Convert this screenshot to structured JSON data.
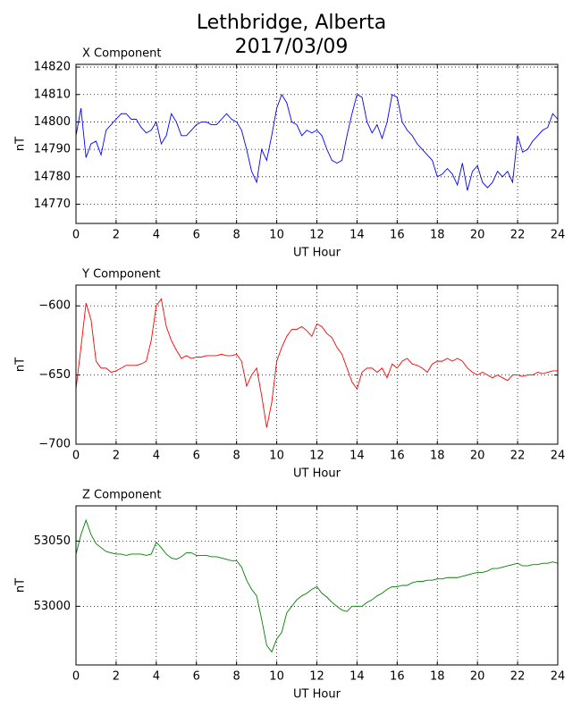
{
  "title": [
    "Lethbridge, Alberta",
    "2017/03/09"
  ],
  "chart_data": [
    {
      "type": "line",
      "title": "X Component",
      "xlabel": "UT Hour",
      "ylabel": "nT",
      "xlim": [
        0,
        24
      ],
      "xticks": [
        0,
        2,
        4,
        6,
        8,
        10,
        12,
        14,
        16,
        18,
        20,
        22,
        24
      ],
      "ylim": [
        14763,
        14821
      ],
      "yticks": [
        14770,
        14780,
        14790,
        14800,
        14810,
        14820
      ],
      "grid": true,
      "x": [
        0,
        0.25,
        0.5,
        0.75,
        1,
        1.25,
        1.5,
        1.75,
        2,
        2.25,
        2.5,
        2.75,
        3,
        3.25,
        3.5,
        3.75,
        4,
        4.25,
        4.5,
        4.75,
        5,
        5.25,
        5.5,
        5.75,
        6,
        6.25,
        6.5,
        6.75,
        7,
        7.25,
        7.5,
        7.75,
        8,
        8.25,
        8.5,
        8.75,
        9,
        9.25,
        9.5,
        9.75,
        10,
        10.25,
        10.5,
        10.75,
        11,
        11.25,
        11.5,
        11.75,
        12,
        12.25,
        12.5,
        12.75,
        13,
        13.25,
        13.5,
        13.75,
        14,
        14.25,
        14.5,
        14.75,
        15,
        15.25,
        15.5,
        15.75,
        16,
        16.25,
        16.5,
        16.75,
        17,
        17.25,
        17.5,
        17.75,
        18,
        18.25,
        18.5,
        18.75,
        19,
        19.25,
        19.5,
        19.75,
        20,
        20.25,
        20.5,
        20.75,
        21,
        21.25,
        21.5,
        21.75,
        22,
        22.25,
        22.5,
        22.75,
        23,
        23.25,
        23.5,
        23.75,
        24
      ],
      "series": [
        {
          "color": "#0000ff",
          "values": [
            14795,
            14805,
            14787,
            14792,
            14793,
            14788,
            14797,
            14799,
            14801,
            14803,
            14803,
            14801,
            14801,
            14798,
            14796,
            14797,
            14800,
            14792,
            14795,
            14803,
            14800,
            14795,
            14795,
            14797,
            14799,
            14800,
            14800,
            14799,
            14799,
            14801,
            14803,
            14801,
            14800,
            14797,
            14790,
            14782,
            14778,
            14790,
            14786,
            14795,
            14805,
            14810,
            14807,
            14800,
            14799,
            14795,
            14797,
            14796,
            14797,
            14795,
            14790,
            14786,
            14785,
            14786,
            14795,
            14803,
            14810,
            14809,
            14800,
            14796,
            14799,
            14794,
            14800,
            14810,
            14809,
            14800,
            14797,
            14795,
            14792,
            14790,
            14788,
            14786,
            14780,
            14781,
            14783,
            14781,
            14777,
            14785,
            14775,
            14782,
            14784,
            14778,
            14776,
            14778,
            14782,
            14780,
            14782,
            14778,
            14795,
            14789,
            14790,
            14793,
            14795,
            14797,
            14798,
            14803,
            14801
          ]
        }
      ]
    },
    {
      "type": "line",
      "title": "Y Component",
      "xlabel": "UT Hour",
      "ylabel": "nT",
      "xlim": [
        0,
        24
      ],
      "xticks": [
        0,
        2,
        4,
        6,
        8,
        10,
        12,
        14,
        16,
        18,
        20,
        22,
        24
      ],
      "ylim": [
        -700,
        -585
      ],
      "yticks": [
        {
          "value": -600,
          "label": "−600"
        },
        {
          "value": -650,
          "label": "−650"
        },
        {
          "value": -700,
          "label": "−700"
        }
      ],
      "grid": true,
      "x": [
        0,
        0.25,
        0.5,
        0.75,
        1,
        1.25,
        1.5,
        1.75,
        2,
        2.25,
        2.5,
        2.75,
        3,
        3.25,
        3.5,
        3.75,
        4,
        4.25,
        4.5,
        4.75,
        5,
        5.25,
        5.5,
        5.75,
        6,
        6.25,
        6.5,
        6.75,
        7,
        7.25,
        7.5,
        7.75,
        8,
        8.25,
        8.5,
        8.75,
        9,
        9.25,
        9.5,
        9.75,
        10,
        10.25,
        10.5,
        10.75,
        11,
        11.25,
        11.5,
        11.75,
        12,
        12.25,
        12.5,
        12.75,
        13,
        13.25,
        13.5,
        13.75,
        14,
        14.25,
        14.5,
        14.75,
        15,
        15.25,
        15.5,
        15.75,
        16,
        16.25,
        16.5,
        16.75,
        17,
        17.25,
        17.5,
        17.75,
        18,
        18.25,
        18.5,
        18.75,
        19,
        19.25,
        19.5,
        19.75,
        20,
        20.25,
        20.5,
        20.75,
        21,
        21.25,
        21.5,
        21.75,
        22,
        22.25,
        22.5,
        22.75,
        23,
        23.25,
        23.5,
        23.75,
        24
      ],
      "series": [
        {
          "color": "#ff0000",
          "values": [
            -660,
            -630,
            -598,
            -610,
            -640,
            -645,
            -645,
            -648,
            -647,
            -645,
            -643,
            -643,
            -643,
            -642,
            -640,
            -625,
            -600,
            -595,
            -615,
            -625,
            -632,
            -638,
            -636,
            -638,
            -637,
            -637,
            -636,
            -636,
            -636,
            -635,
            -636,
            -636,
            -635,
            -640,
            -658,
            -650,
            -645,
            -665,
            -688,
            -670,
            -640,
            -630,
            -622,
            -617,
            -617,
            -615,
            -618,
            -622,
            -613,
            -615,
            -620,
            -623,
            -630,
            -635,
            -645,
            -655,
            -660,
            -648,
            -645,
            -645,
            -648,
            -645,
            -652,
            -642,
            -645,
            -640,
            -638,
            -642,
            -643,
            -645,
            -648,
            -642,
            -640,
            -640,
            -638,
            -640,
            -638,
            -640,
            -645,
            -648,
            -650,
            -648,
            -650,
            -652,
            -650,
            -652,
            -654,
            -650,
            -650,
            -651,
            -650,
            -650,
            -648,
            -649,
            -648,
            -647,
            -647
          ]
        }
      ]
    },
    {
      "type": "line",
      "title": "Z Component",
      "xlabel": "UT Hour",
      "ylabel": "nT",
      "xlim": [
        0,
        24
      ],
      "xticks": [
        0,
        2,
        4,
        6,
        8,
        10,
        12,
        14,
        16,
        18,
        20,
        22,
        24
      ],
      "ylim": [
        52955,
        53077
      ],
      "yticks": [
        53000,
        53050
      ],
      "grid": true,
      "x": [
        0,
        0.25,
        0.5,
        0.75,
        1,
        1.25,
        1.5,
        1.75,
        2,
        2.25,
        2.5,
        2.75,
        3,
        3.25,
        3.5,
        3.75,
        4,
        4.25,
        4.5,
        4.75,
        5,
        5.25,
        5.5,
        5.75,
        6,
        6.25,
        6.5,
        6.75,
        7,
        7.25,
        7.5,
        7.75,
        8,
        8.25,
        8.5,
        8.75,
        9,
        9.25,
        9.5,
        9.75,
        10,
        10.25,
        10.5,
        10.75,
        11,
        11.25,
        11.5,
        11.75,
        12,
        12.25,
        12.5,
        12.75,
        13,
        13.25,
        13.5,
        13.75,
        14,
        14.25,
        14.5,
        14.75,
        15,
        15.25,
        15.5,
        15.75,
        16,
        16.25,
        16.5,
        16.75,
        17,
        17.25,
        17.5,
        17.75,
        18,
        18.25,
        18.5,
        18.75,
        19,
        19.25,
        19.5,
        19.75,
        20,
        20.25,
        20.5,
        20.75,
        21,
        21.25,
        21.5,
        21.75,
        22,
        22.25,
        22.5,
        22.75,
        23,
        23.25,
        23.5,
        23.75,
        24
      ],
      "series": [
        {
          "color": "#008000",
          "values": [
            53040,
            53055,
            53066,
            53055,
            53048,
            53045,
            53042,
            53041,
            53040,
            53040,
            53039,
            53040,
            53040,
            53040,
            53039,
            53040,
            53049,
            53045,
            53040,
            53037,
            53036,
            53038,
            53041,
            53041,
            53039,
            53039,
            53039,
            53038,
            53038,
            53037,
            53036,
            53035,
            53035,
            53030,
            53020,
            53013,
            53008,
            52990,
            52970,
            52965,
            52975,
            52980,
            52995,
            53000,
            53005,
            53008,
            53010,
            53013,
            53015,
            53010,
            53007,
            53003,
            53000,
            52997,
            52996,
            53000,
            53000,
            53000,
            53003,
            53005,
            53008,
            53010,
            53013,
            53015,
            53015,
            53016,
            53016,
            53018,
            53019,
            53019,
            53020,
            53020,
            53021,
            53021,
            53022,
            53022,
            53022,
            53023,
            53024,
            53025,
            53026,
            53026,
            53027,
            53029,
            53029,
            53030,
            53031,
            53032,
            53033,
            53031,
            53031,
            53032,
            53032,
            53033,
            53033,
            53034,
            53033
          ]
        }
      ]
    }
  ]
}
